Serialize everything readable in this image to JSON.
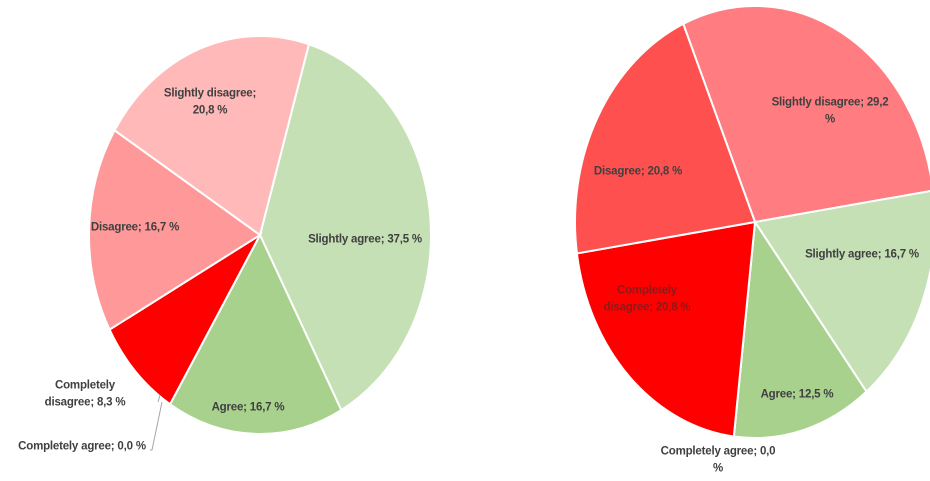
{
  "chart_data": [
    {
      "type": "pie",
      "values": [
        37.5,
        16.7,
        0.0,
        8.3,
        16.7,
        20.8
      ],
      "value_labels": [
        "Slightly agree; 37,5 %",
        "Agree; 16,7 %",
        "Completely agree; 0,0 %",
        "Completely disagree; 8,3 %",
        "Disagree; 16,7 %",
        "Slightly disagree; 20,8 %"
      ],
      "colors": [
        "#c5e0b4",
        "#a9d18e",
        "#70ad47",
        "#ff0000",
        "#ff9999",
        "#ffb9b9"
      ]
    },
    {
      "type": "pie",
      "values": [
        29.2,
        16.7,
        12.5,
        0.0,
        20.8,
        20.8
      ],
      "value_labels": [
        "Slightly disagree; 29,2 %",
        "Slightly agree; 16,7 %",
        "Agree; 12,5 %",
        "Completely agree; 0,0 %",
        "Completely disagree; 20,8 %",
        "Disagree; 20,8 %"
      ],
      "colors": [
        "#ff7c80",
        "#c5e0b4",
        "#a9d18e",
        "#70ad47",
        "#ff0000",
        "#ff5050"
      ]
    }
  ]
}
